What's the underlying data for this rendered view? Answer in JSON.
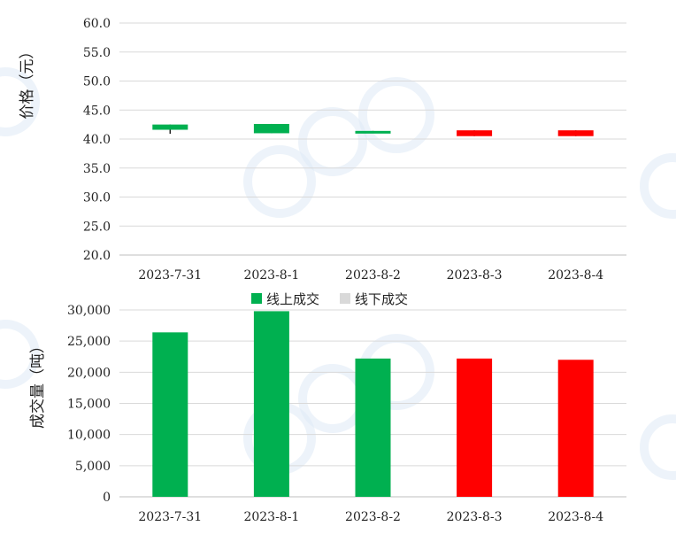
{
  "colors": {
    "up": "#00b050",
    "down": "#ff0000",
    "offline": "#d9d9d9",
    "grid": "#d9d9d9"
  },
  "chart_data": [
    {
      "type": "candlestick",
      "ylabel": "价格（元）",
      "ylim": [
        20,
        60
      ],
      "yticks": [
        "60.0",
        "55.0",
        "50.0",
        "45.0",
        "40.0",
        "35.0",
        "30.0",
        "25.0",
        "20.0"
      ],
      "ytick_values": [
        60,
        55,
        50,
        45,
        40,
        35,
        30,
        25,
        20
      ],
      "categories": [
        "2023-7-31",
        "2023-8-1",
        "2023-8-2",
        "2023-8-3",
        "2023-8-4"
      ],
      "candles": [
        {
          "open": 41.6,
          "close": 42.5,
          "high": 42.5,
          "low": 40.9,
          "trend": "up"
        },
        {
          "open": 41.0,
          "close": 42.6,
          "high": 42.6,
          "low": 41.0,
          "trend": "up"
        },
        {
          "open": 41.1,
          "close": 41.4,
          "high": 41.4,
          "low": 41.1,
          "trend": "up"
        },
        {
          "open": 41.5,
          "close": 40.5,
          "high": 41.5,
          "low": 40.5,
          "trend": "down"
        },
        {
          "open": 41.5,
          "close": 40.5,
          "high": 41.5,
          "low": 40.5,
          "trend": "down"
        }
      ]
    },
    {
      "type": "bar",
      "stacked": true,
      "ylabel": "成交量（吨）",
      "ylim": [
        0,
        30000
      ],
      "yticks": [
        "30,000",
        "25,000",
        "20,000",
        "15,000",
        "10,000",
        "5,000",
        "0"
      ],
      "ytick_values": [
        30000,
        25000,
        20000,
        15000,
        10000,
        5000,
        0
      ],
      "categories": [
        "2023-7-31",
        "2023-8-1",
        "2023-8-2",
        "2023-8-3",
        "2023-8-4"
      ],
      "legend": {
        "position": "top",
        "entries": [
          "线上成交",
          "线下成交"
        ]
      },
      "series": [
        {
          "name": "线上成交",
          "values": [
            26400,
            29800,
            22200,
            22200,
            22000
          ],
          "bar_colors": [
            "#00b050",
            "#00b050",
            "#00b050",
            "#ff0000",
            "#ff0000"
          ]
        },
        {
          "name": "线下成交",
          "values": [
            0,
            0,
            0,
            0,
            0
          ]
        }
      ]
    }
  ]
}
